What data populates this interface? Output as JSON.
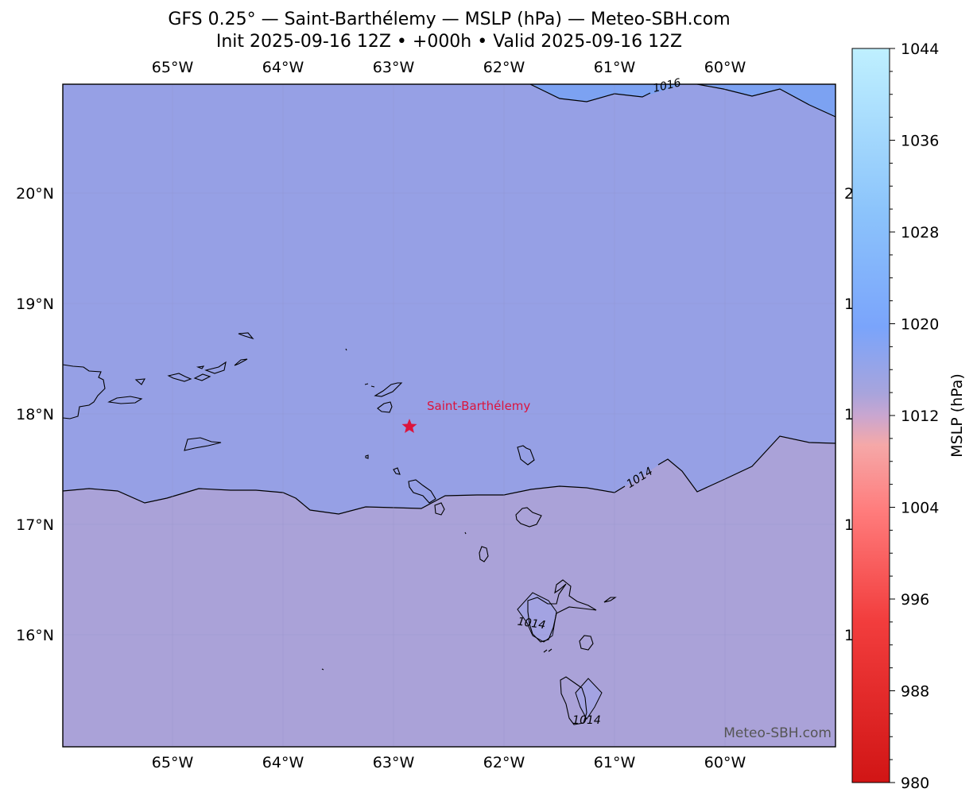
{
  "title": {
    "line1": "GFS 0.25° — Saint-Barthélemy — MSLP (hPa) — Meteo-SBH.com",
    "line2": "Init 2025-09-16 12Z • +000h • Valid 2025-09-16 12Z"
  },
  "map": {
    "lon_range": [
      -66.0,
      -59.0
    ],
    "lat_range": [
      15.0,
      21.0
    ],
    "lon_ticks": [
      {
        "lon": -65,
        "label": "65°W"
      },
      {
        "lon": -64,
        "label": "64°W"
      },
      {
        "lon": -63,
        "label": "63°W"
      },
      {
        "lon": -62,
        "label": "62°W"
      },
      {
        "lon": -61,
        "label": "61°W"
      },
      {
        "lon": -60,
        "label": "60°W"
      }
    ],
    "lat_ticks": [
      {
        "lat": 20,
        "label": "20°N"
      },
      {
        "lat": 19,
        "label": "19°N"
      },
      {
        "lat": 18,
        "label": "18°N"
      },
      {
        "lat": 17,
        "label": "17°N"
      },
      {
        "lat": 16,
        "label": "16°N"
      }
    ],
    "marker": {
      "name": "Saint-Barthélemy",
      "lon": -62.85,
      "lat": 17.9,
      "color": "#dc143c"
    },
    "contour_labels": [
      "1016",
      "1014",
      "1014",
      "1014"
    ],
    "pressure_regions": {
      "north_color": "#96a0e5",
      "south_color": "#aaa2d8",
      "northeast_color": "#7ca2f2"
    },
    "watermark": "Meteo-SBH.com"
  },
  "colorbar": {
    "label": "MSLP (hPa)",
    "min": 980,
    "max": 1044,
    "ticks": [
      "1044",
      "1036",
      "1028",
      "1020",
      "1012",
      "1004",
      "996",
      "988",
      "980"
    ],
    "colors": {
      "low": "#d11515",
      "mid": "#c6a4d0",
      "high": "#bff0ff"
    }
  }
}
